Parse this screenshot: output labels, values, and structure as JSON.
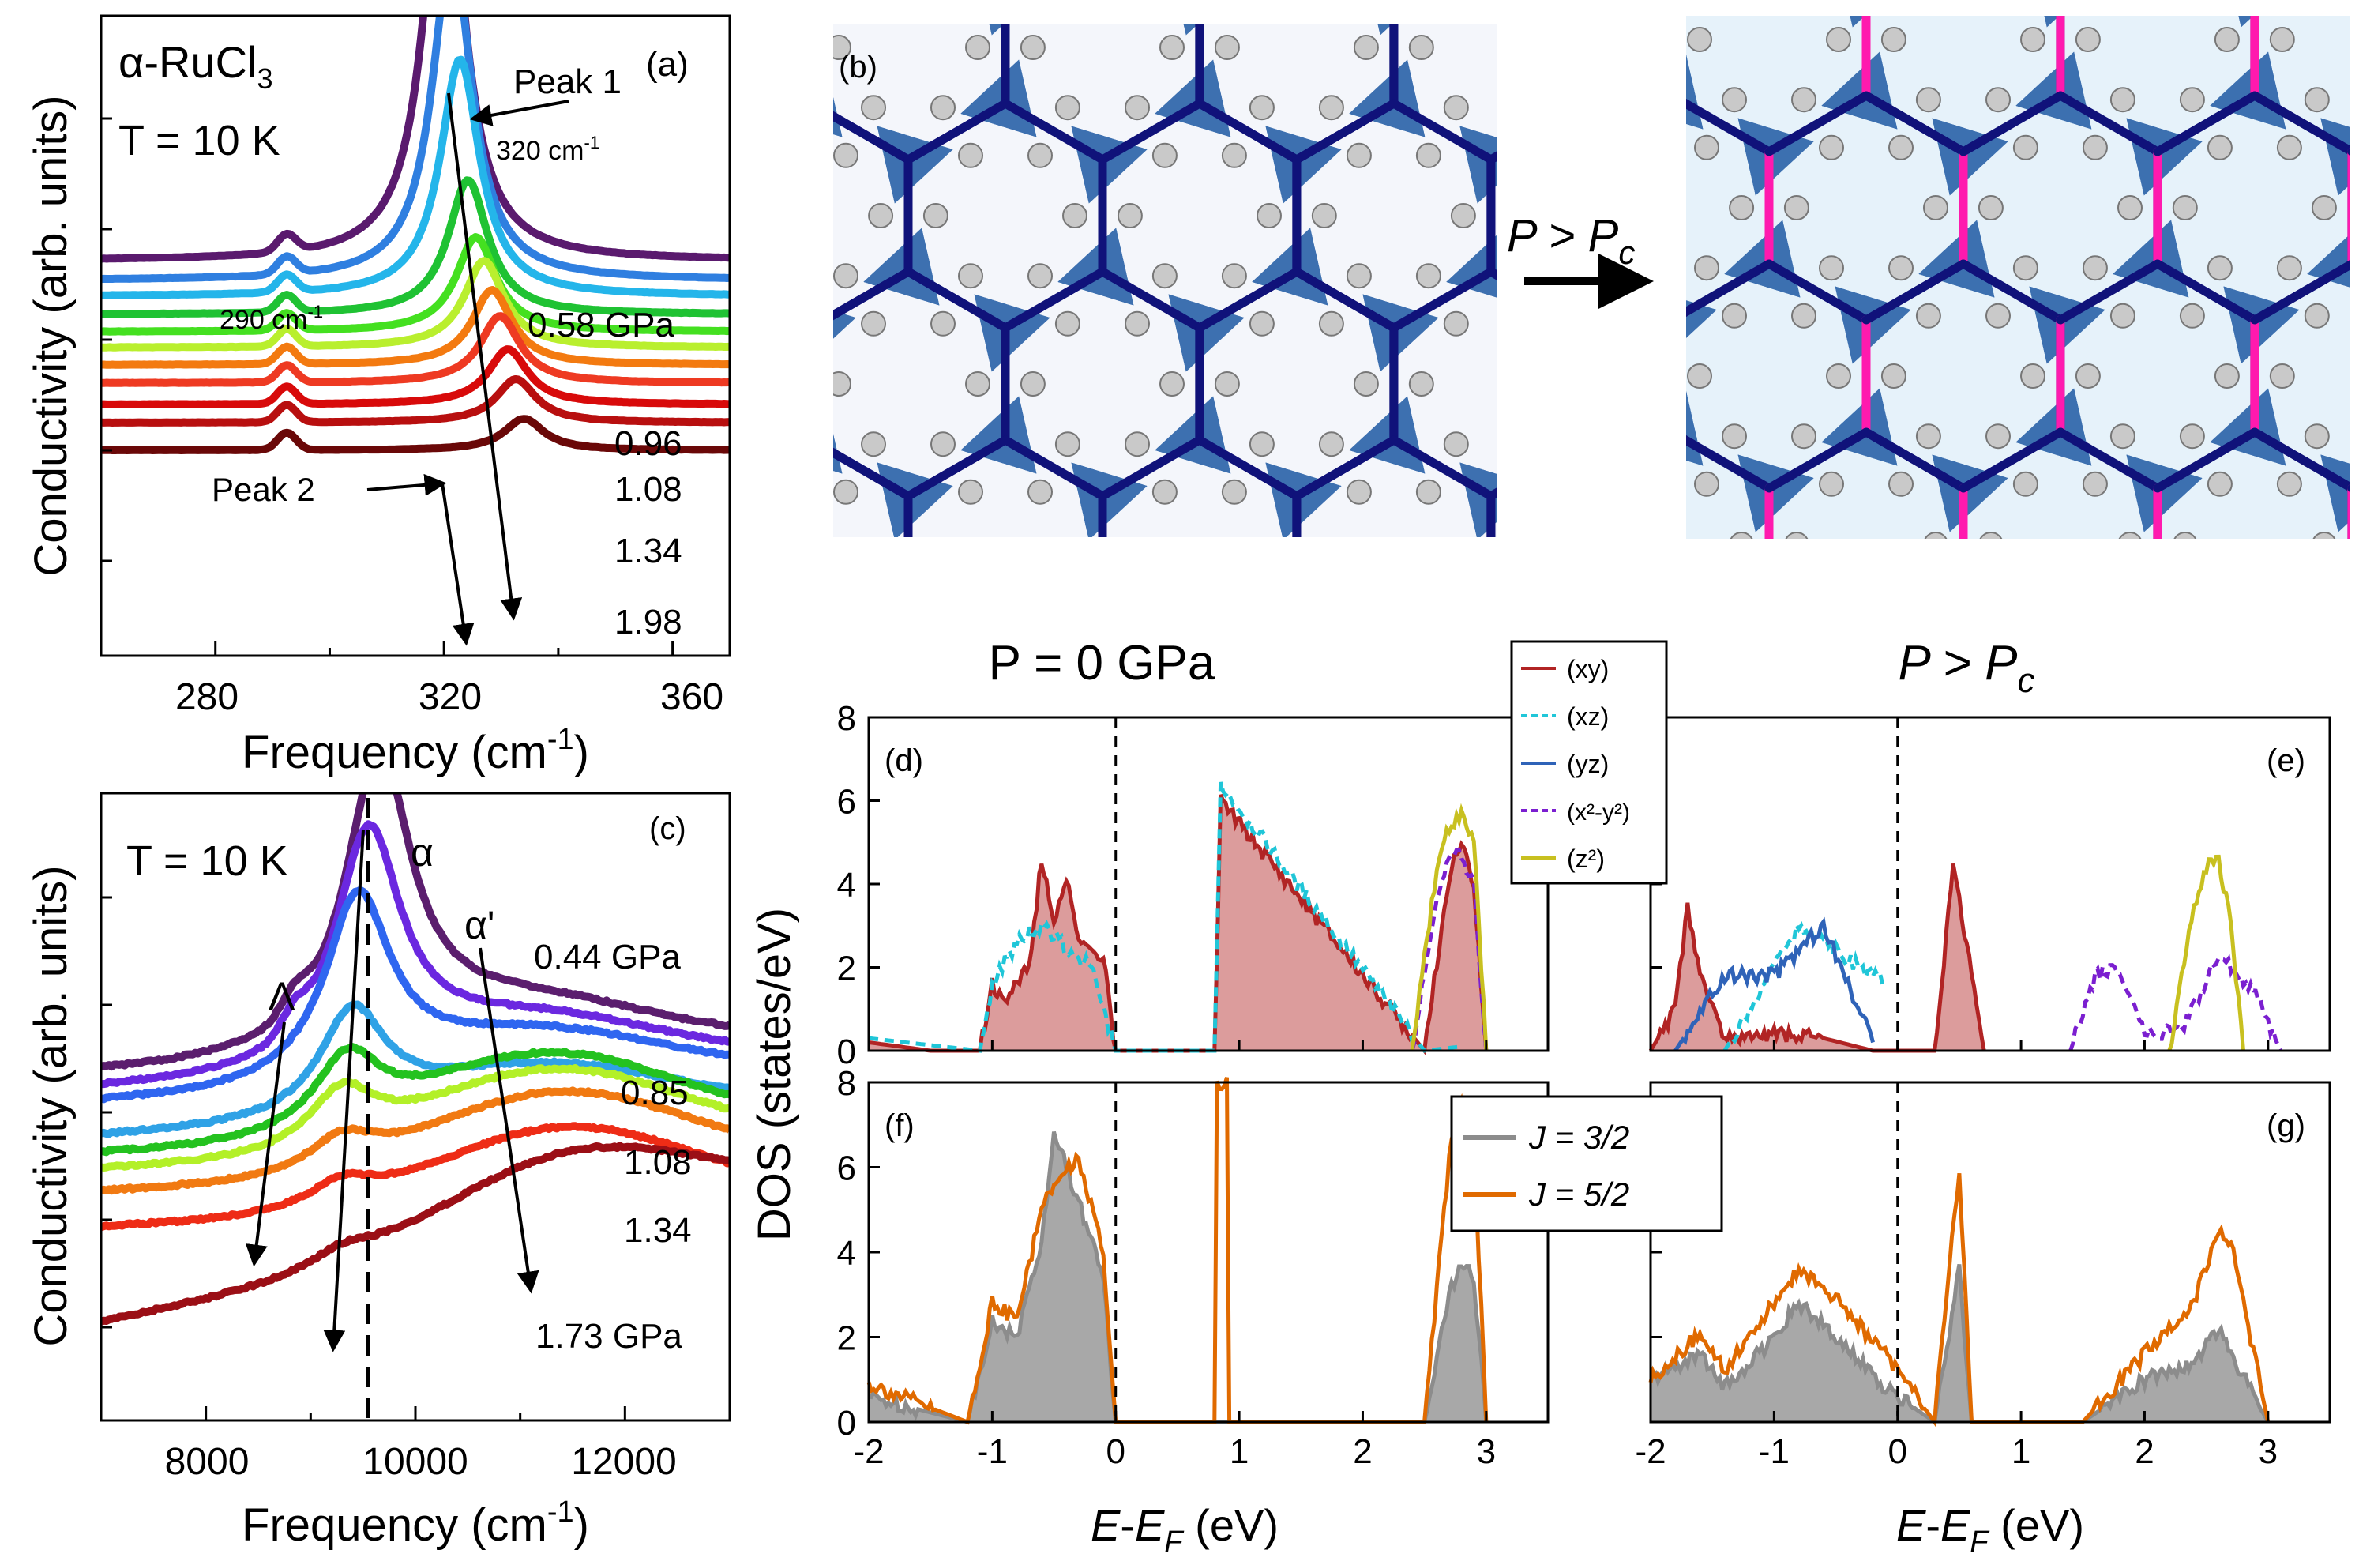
{
  "colors": {
    "a_series": [
      "#5a1a6e",
      "#2f7fe0",
      "#24b5ea",
      "#1fc233",
      "#44e020",
      "#b9ef2e",
      "#f37a10",
      "#ee3a22",
      "#d80a0a",
      "#b80f0f",
      "#6a0808"
    ],
    "c_series": [
      "#5b1e6e",
      "#6b28e0",
      "#2f66f0",
      "#2fa2e6",
      "#24c21f",
      "#b3f028",
      "#f17a12",
      "#ee2c16",
      "#9b0f16"
    ],
    "xy": "#b12424",
    "xz": "#20c6d8",
    "yz": "#2f63b8",
    "x2y2": "#7b1fd0",
    "z2": "#c8c020",
    "j32": "#8c8c8c",
    "j52": "#e06a00",
    "bond_blue": "#10127a",
    "bond_magenta": "#ff1aae",
    "octa": "#3c6fb0"
  },
  "panel_a": {
    "tag": "(a)",
    "material": "α-RuCl",
    "material_sub": "3",
    "temp": "T = 10 K",
    "peak1": "Peak 1",
    "peak1_pos": "320 cm",
    "peak1_sup": "-1",
    "peak290": "290 cm",
    "peak290_sup": "-1",
    "peak2": "Peak 2",
    "ylabel": "Conductivity (arb. units)",
    "xlabel": "Frequency (cm",
    "xlabel_sup": "-1",
    "xlabel_end": ")",
    "pressure_labels": [
      "0.58 GPa",
      "0.96",
      "1.08",
      "1.34",
      "1.98"
    ],
    "xticks": [
      "280",
      "320",
      "360"
    ]
  },
  "panel_c": {
    "tag": "(c)",
    "temp": "T = 10 K",
    "alpha": "α",
    "alpha_prime": "α'",
    "lambda": "Λ",
    "ylabel": "Conductivity (arb. units)",
    "xlabel": "Frequency (cm",
    "xlabel_sup": "-1",
    "xlabel_end": ")",
    "pressure_labels": [
      "0.44 GPa",
      "0.85",
      "1.08",
      "1.34",
      "1.73 GPa"
    ],
    "xticks": [
      "8000",
      "10000",
      "12000"
    ]
  },
  "panel_b": {
    "tag": "(b)",
    "arrow_label": "P > P",
    "arrow_sub": "c"
  },
  "dos": {
    "title_left": "P = 0 GPa",
    "title_right": "P > P",
    "title_right_sub": "c",
    "ylabel": "DOS (states/eV)",
    "xlabel_e": "E",
    "xlabel_dash": "-",
    "xlabel_ef": "E",
    "xlabel_ef_sub": "F",
    "xlabel_unit": " (eV)",
    "tags": [
      "(d)",
      "(e)",
      "(f)",
      "(g)"
    ],
    "yticks": [
      "0",
      "2",
      "4",
      "6",
      "8"
    ],
    "xticks": [
      "-2",
      "-1",
      "0",
      "1",
      "2",
      "3"
    ],
    "orbital_legend": [
      "(xy)",
      "(xz)",
      "(yz)",
      "(x²-y²)",
      "(z²)"
    ],
    "j_legend": [
      "J = 3/2",
      "J = 5/2"
    ]
  },
  "chart_data": [
    {
      "type": "line",
      "panel": "a",
      "xlabel": "Frequency (cm-1)",
      "ylabel": "Conductivity (arb. units)",
      "xlim": [
        260,
        370
      ],
      "series": [
        {
          "name": "0.58 GPa",
          "peak1_cm": 320,
          "peak2_cm": 290
        },
        {
          "name": "0.96"
        },
        {
          "name": "1.08"
        },
        {
          "name": "1.34"
        },
        {
          "name": "1.98",
          "peak1_cm": 334
        }
      ]
    },
    {
      "type": "line",
      "panel": "c",
      "xlabel": "Frequency (cm-1)",
      "ylabel": "Conductivity (arb. units)",
      "xlim": [
        7000,
        13000
      ],
      "series": [
        {
          "name": "0.44 GPa",
          "alpha_cm": 9650
        },
        {
          "name": "0.85"
        },
        {
          "name": "1.08"
        },
        {
          "name": "1.34"
        },
        {
          "name": "1.73 GPa"
        }
      ]
    },
    {
      "type": "area",
      "panel": "d",
      "xlabel": "E-EF (eV)",
      "ylabel": "DOS (states/eV)",
      "xlim": [
        -2,
        3.5
      ],
      "ylim": [
        0,
        8
      ],
      "series": [
        {
          "name": "(xy)",
          "x": [
            -2,
            -1.5,
            -1.1,
            -1.0,
            -0.9,
            -0.7,
            -0.6,
            -0.5,
            -0.4,
            -0.3,
            -0.2,
            -0.1,
            0,
            0.8,
            0.85,
            2.5,
            2.7,
            2.8,
            2.9,
            3.0
          ],
          "y": [
            0.2,
            0,
            0,
            1.6,
            1.2,
            2.0,
            4.6,
            3.0,
            4.2,
            2.6,
            2.4,
            2.2,
            0,
            0,
            6.0,
            0,
            4.2,
            5.0,
            4.0,
            0
          ]
        },
        {
          "name": "(xz)",
          "x": [
            -2,
            -1.1,
            -1.0,
            -0.8,
            -0.6,
            -0.4,
            -0.2,
            0,
            0.8,
            0.85,
            2.5,
            2.8
          ],
          "y": [
            0.3,
            0,
            1.6,
            2.6,
            3.0,
            2.5,
            2.0,
            0,
            0,
            6.4,
            0,
            0.1
          ]
        },
        {
          "name": "(x²-y²)",
          "x": [
            2.4,
            2.6,
            2.7,
            2.8,
            2.9,
            3.0
          ],
          "y": [
            0,
            3.6,
            4.8,
            4.6,
            4.0,
            0
          ]
        },
        {
          "name": "(z²)",
          "x": [
            2.4,
            2.6,
            2.7,
            2.8,
            2.9,
            3.0
          ],
          "y": [
            0,
            4.4,
            5.4,
            5.6,
            5.2,
            0
          ]
        }
      ]
    },
    {
      "type": "area",
      "panel": "e",
      "xlabel": "E-EF (eV)",
      "ylabel": "DOS (states/eV)",
      "xlim": [
        -2,
        3.5
      ],
      "ylim": [
        0,
        8
      ],
      "series": [
        {
          "name": "(xy)",
          "x": [
            -2,
            -1.8,
            -1.7,
            -1.6,
            -1.4,
            -1.0,
            -0.6,
            -0.2,
            0.3,
            0.45,
            0.5,
            0.7
          ],
          "y": [
            0,
            1.0,
            3.5,
            1.8,
            0.3,
            0.4,
            0.3,
            0,
            0,
            4.4,
            3.6,
            0
          ]
        },
        {
          "name": "(xz)",
          "x": [
            -1.4,
            -1.0,
            -0.8,
            -0.5,
            -0.1
          ],
          "y": [
            0,
            2.0,
            3.0,
            2.4,
            1.6
          ]
        },
        {
          "name": "(yz)",
          "x": [
            -1.8,
            -1.4,
            -1.0,
            -0.6,
            -0.2
          ],
          "y": [
            0,
            1.8,
            1.8,
            3.0,
            0.2
          ]
        },
        {
          "name": "(x²-y²)",
          "x": [
            1.4,
            1.6,
            1.8,
            2.0,
            2.3,
            2.6,
            2.9,
            3.1
          ],
          "y": [
            0,
            1.8,
            2.0,
            0.4,
            0.5,
            2.3,
            1.4,
            0
          ]
        },
        {
          "name": "(z²)",
          "x": [
            2.2,
            2.4,
            2.5,
            2.6,
            2.7,
            2.8
          ],
          "y": [
            0,
            3.4,
            4.4,
            4.6,
            3.0,
            0
          ]
        }
      ]
    },
    {
      "type": "area",
      "panel": "f",
      "xlabel": "E-EF (eV)",
      "ylabel": "DOS (states/eV)",
      "xlim": [
        -2,
        3.5
      ],
      "ylim": [
        0,
        8
      ],
      "series": [
        {
          "name": "J = 3/2",
          "x": [
            -2,
            -1.2,
            -1.0,
            -0.8,
            -0.6,
            -0.5,
            -0.3,
            -0.1,
            0,
            2.5,
            2.7,
            2.8,
            2.9,
            3.0
          ],
          "y": [
            0.6,
            0,
            2.4,
            2.0,
            4.2,
            6.8,
            5.2,
            3.4,
            0,
            0,
            3.0,
            3.8,
            3.4,
            0
          ]
        },
        {
          "name": "J = 5/2",
          "x": [
            -2,
            -1.2,
            -1.0,
            -0.8,
            -0.6,
            -0.5,
            -0.3,
            -0.1,
            0,
            0.8,
            0.82,
            0.9,
            0.92,
            2.5,
            2.7,
            2.8,
            2.9,
            3.0
          ],
          "y": [
            0.9,
            0,
            2.8,
            2.4,
            5.0,
            5.6,
            6.2,
            4.0,
            0,
            0,
            8,
            8,
            0,
            0,
            6.2,
            7.6,
            6.6,
            0
          ]
        }
      ]
    },
    {
      "type": "area",
      "panel": "g",
      "xlabel": "E-EF (eV)",
      "ylabel": "DOS (states/eV)",
      "xlim": [
        -2,
        3.5
      ],
      "ylim": [
        0,
        8
      ],
      "series": [
        {
          "name": "J = 3/2",
          "x": [
            -2,
            -1.6,
            -1.4,
            -1.0,
            -0.8,
            -0.5,
            -0.1,
            0.3,
            0.5,
            0.6,
            1.5,
            2.0,
            2.4,
            2.6,
            2.7,
            3.0
          ],
          "y": [
            1.0,
            1.6,
            0.8,
            2.0,
            2.8,
            2.0,
            0.8,
            0,
            3.6,
            0,
            0,
            1.0,
            1.4,
            2.2,
            1.6,
            0
          ]
        },
        {
          "name": "J = 5/2",
          "x": [
            -2,
            -1.6,
            -1.4,
            -1.0,
            -0.8,
            -0.5,
            -0.1,
            0.3,
            0.5,
            0.6,
            1.5,
            2.0,
            2.4,
            2.6,
            2.7,
            3.0
          ],
          "y": [
            1.0,
            2.1,
            1.2,
            2.8,
            3.6,
            2.9,
            1.6,
            0,
            6.0,
            0,
            0,
            1.6,
            2.8,
            4.6,
            4.2,
            0
          ]
        }
      ]
    }
  ]
}
